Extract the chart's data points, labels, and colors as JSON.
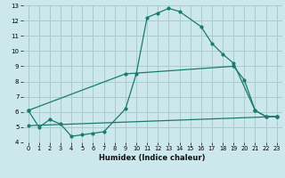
{
  "xlabel": "Humidex (Indice chaleur)",
  "bg_color": "#cce8ec",
  "grid_color": "#aacccc",
  "line_color": "#1a7a6e",
  "xlim": [
    -0.5,
    23.5
  ],
  "ylim": [
    4,
    13
  ],
  "xticks": [
    0,
    1,
    2,
    3,
    4,
    5,
    6,
    7,
    8,
    9,
    10,
    11,
    12,
    13,
    14,
    15,
    16,
    17,
    18,
    19,
    20,
    21,
    22,
    23
  ],
  "yticks": [
    4,
    5,
    6,
    7,
    8,
    9,
    10,
    11,
    12,
    13
  ],
  "curve1_x": [
    0,
    1,
    2,
    3,
    4,
    5,
    6,
    7,
    9,
    10,
    11,
    12,
    13,
    14,
    16,
    17,
    18,
    19,
    21,
    22,
    23
  ],
  "curve1_y": [
    6.1,
    5.0,
    5.5,
    5.2,
    4.4,
    4.5,
    4.6,
    4.7,
    6.2,
    8.5,
    12.2,
    12.5,
    12.8,
    12.6,
    11.6,
    10.5,
    9.8,
    9.2,
    6.1,
    5.7,
    5.7
  ],
  "curve2_x": [
    0,
    9,
    19,
    20,
    21,
    22,
    23
  ],
  "curve2_y": [
    6.1,
    8.5,
    9.0,
    8.1,
    6.1,
    5.7,
    5.7
  ],
  "curve3_x": [
    0,
    23
  ],
  "curve3_y": [
    5.1,
    5.7
  ]
}
